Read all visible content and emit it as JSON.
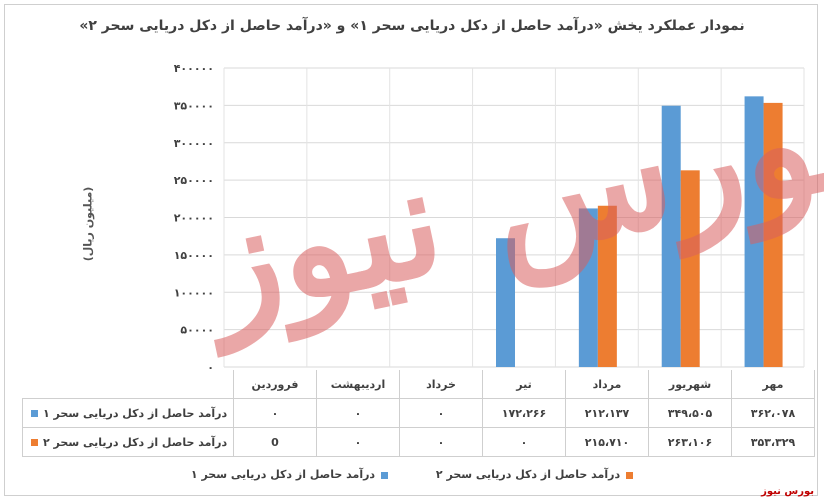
{
  "chart_data": {
    "type": "bar",
    "title": "نمودار عملکرد یخش «درآمد حاصل از دکل دریایی سحر ۱» و «درآمد حاصل از دکل دریایی سحر ۲»",
    "ylabel": "(میلیون ریال)",
    "xlabel": "",
    "ylim": [
      0,
      400000
    ],
    "yticks": [
      "۰",
      "۵۰۰۰۰",
      "۱۰۰۰۰۰",
      "۱۵۰۰۰۰",
      "۲۰۰۰۰۰",
      "۲۵۰۰۰۰",
      "۳۰۰۰۰۰",
      "۳۵۰۰۰۰",
      "۴۰۰۰۰۰"
    ],
    "ytick_values": [
      0,
      50000,
      100000,
      150000,
      200000,
      250000,
      300000,
      350000,
      400000
    ],
    "grid": true,
    "legend_position": "bottom",
    "categories": [
      "فروردین",
      "اردیبهشت",
      "خرداد",
      "تیر",
      "مرداد",
      "شهریور",
      "مهر"
    ],
    "series": [
      {
        "name": "درآمد حاصل از دکل دریایی سحر ۱",
        "color": "#5b9bd5",
        "values": [
          0,
          0,
          0,
          172266,
          212137,
          349505,
          362078
        ],
        "labels": [
          "۰",
          "۰",
          "۰",
          "۱۷۲،۲۶۶",
          "۲۱۲،۱۳۷",
          "۳۴۹،۵۰۵",
          "۳۶۲،۰۷۸"
        ]
      },
      {
        "name": "درآمد حاصل از دکل دریایی سحر ۲",
        "color": "#ed7d31",
        "values": [
          0,
          0,
          0,
          0,
          215710,
          263106,
          353329
        ],
        "labels": [
          "0",
          "۰",
          "۰",
          "۰",
          "۲۱۵،۷۱۰",
          "۲۶۳،۱۰۶",
          "۳۵۳،۳۲۹"
        ]
      }
    ]
  },
  "watermark": "بورس نیوز",
  "source": "بورس نیوز"
}
